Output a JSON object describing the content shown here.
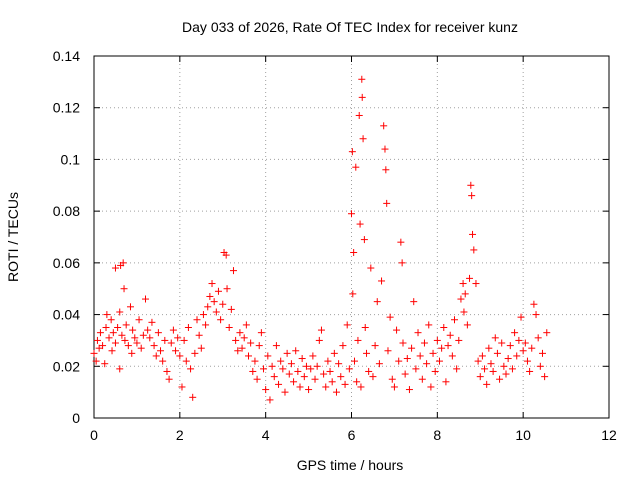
{
  "chart_data": {
    "type": "scatter",
    "title": "Day 033 of 2026, Rate Of TEC Index for receiver kunz",
    "xlabel": "GPS time / hours",
    "ylabel": "ROTI / TECUs",
    "xlim": [
      0,
      12
    ],
    "ylim": [
      0,
      0.14
    ],
    "x_ticks": [
      "0",
      "2",
      "4",
      "6",
      "8",
      "10",
      "12"
    ],
    "y_ticks": [
      "0",
      "0.02",
      "0.04",
      "0.06",
      "0.08",
      "0.1",
      "0.12",
      "0.14"
    ],
    "grid": true,
    "marker": "plus",
    "color": "#ff0000",
    "series": [
      {
        "points": [
          [
            0.0,
            0.025
          ],
          [
            0.05,
            0.022
          ],
          [
            0.08,
            0.03
          ],
          [
            0.12,
            0.027
          ],
          [
            0.15,
            0.033
          ],
          [
            0.2,
            0.028
          ],
          [
            0.25,
            0.021
          ],
          [
            0.28,
            0.035
          ],
          [
            0.3,
            0.04
          ],
          [
            0.35,
            0.031
          ],
          [
            0.4,
            0.038
          ],
          [
            0.42,
            0.026
          ],
          [
            0.45,
            0.033
          ],
          [
            0.5,
            0.029
          ],
          [
            0.5,
            0.058
          ],
          [
            0.55,
            0.035
          ],
          [
            0.6,
            0.041
          ],
          [
            0.6,
            0.019
          ],
          [
            0.62,
            0.059
          ],
          [
            0.65,
            0.032
          ],
          [
            0.68,
            0.06
          ],
          [
            0.7,
            0.05
          ],
          [
            0.72,
            0.03
          ],
          [
            0.75,
            0.036
          ],
          [
            0.8,
            0.028
          ],
          [
            0.85,
            0.043
          ],
          [
            0.88,
            0.025
          ],
          [
            0.9,
            0.034
          ],
          [
            0.95,
            0.031
          ],
          [
            1.0,
            0.029
          ],
          [
            1.05,
            0.038
          ],
          [
            1.1,
            0.027
          ],
          [
            1.15,
            0.032
          ],
          [
            1.2,
            0.046
          ],
          [
            1.25,
            0.034
          ],
          [
            1.3,
            0.031
          ],
          [
            1.35,
            0.037
          ],
          [
            1.4,
            0.028
          ],
          [
            1.45,
            0.024
          ],
          [
            1.5,
            0.033
          ],
          [
            1.55,
            0.026
          ],
          [
            1.6,
            0.022
          ],
          [
            1.65,
            0.03
          ],
          [
            1.7,
            0.018
          ],
          [
            1.75,
            0.015
          ],
          [
            1.8,
            0.029
          ],
          [
            1.85,
            0.034
          ],
          [
            1.9,
            0.026
          ],
          [
            1.95,
            0.031
          ],
          [
            2.0,
            0.024
          ],
          [
            2.05,
            0.012
          ],
          [
            2.1,
            0.03
          ],
          [
            2.15,
            0.022
          ],
          [
            2.2,
            0.035
          ],
          [
            2.25,
            0.019
          ],
          [
            2.3,
            0.008
          ],
          [
            2.35,
            0.025
          ],
          [
            2.4,
            0.038
          ],
          [
            2.45,
            0.032
          ],
          [
            2.5,
            0.027
          ],
          [
            2.55,
            0.04
          ],
          [
            2.6,
            0.036
          ],
          [
            2.65,
            0.043
          ],
          [
            2.7,
            0.047
          ],
          [
            2.75,
            0.052
          ],
          [
            2.8,
            0.045
          ],
          [
            2.85,
            0.041
          ],
          [
            2.9,
            0.049
          ],
          [
            2.95,
            0.038
          ],
          [
            3.0,
            0.044
          ],
          [
            3.03,
            0.064
          ],
          [
            3.08,
            0.063
          ],
          [
            3.1,
            0.05
          ],
          [
            3.15,
            0.035
          ],
          [
            3.2,
            0.042
          ],
          [
            3.25,
            0.057
          ],
          [
            3.3,
            0.03
          ],
          [
            3.35,
            0.026
          ],
          [
            3.4,
            0.033
          ],
          [
            3.45,
            0.027
          ],
          [
            3.5,
            0.031
          ],
          [
            3.55,
            0.036
          ],
          [
            3.6,
            0.024
          ],
          [
            3.65,
            0.029
          ],
          [
            3.7,
            0.018
          ],
          [
            3.75,
            0.022
          ],
          [
            3.8,
            0.015
          ],
          [
            3.85,
            0.028
          ],
          [
            3.9,
            0.033
          ],
          [
            3.95,
            0.019
          ],
          [
            4.0,
            0.011
          ],
          [
            4.05,
            0.024
          ],
          [
            4.1,
            0.007
          ],
          [
            4.15,
            0.02
          ],
          [
            4.2,
            0.016
          ],
          [
            4.25,
            0.028
          ],
          [
            4.3,
            0.013
          ],
          [
            4.35,
            0.022
          ],
          [
            4.4,
            0.019
          ],
          [
            4.45,
            0.01
          ],
          [
            4.5,
            0.025
          ],
          [
            4.55,
            0.017
          ],
          [
            4.6,
            0.021
          ],
          [
            4.65,
            0.014
          ],
          [
            4.7,
            0.026
          ],
          [
            4.75,
            0.018
          ],
          [
            4.8,
            0.012
          ],
          [
            4.85,
            0.023
          ],
          [
            4.9,
            0.016
          ],
          [
            4.95,
            0.02
          ],
          [
            5.0,
            0.011
          ],
          [
            5.05,
            0.019
          ],
          [
            5.1,
            0.024
          ],
          [
            5.15,
            0.015
          ],
          [
            5.2,
            0.02
          ],
          [
            5.25,
            0.03
          ],
          [
            5.3,
            0.034
          ],
          [
            5.35,
            0.017
          ],
          [
            5.4,
            0.012
          ],
          [
            5.45,
            0.022
          ],
          [
            5.5,
            0.018
          ],
          [
            5.55,
            0.014
          ],
          [
            5.6,
            0.025
          ],
          [
            5.65,
            0.01
          ],
          [
            5.7,
            0.021
          ],
          [
            5.75,
            0.016
          ],
          [
            5.8,
            0.028
          ],
          [
            5.85,
            0.013
          ],
          [
            5.9,
            0.036
          ],
          [
            5.95,
            0.019
          ],
          [
            6.0,
            0.079
          ],
          [
            6.02,
            0.103
          ],
          [
            6.03,
            0.048
          ],
          [
            6.05,
            0.064
          ],
          [
            6.07,
            0.022
          ],
          [
            6.1,
            0.097
          ],
          [
            6.12,
            0.014
          ],
          [
            6.15,
            0.03
          ],
          [
            6.18,
            0.117
          ],
          [
            6.2,
            0.075
          ],
          [
            6.22,
            0.012
          ],
          [
            6.24,
            0.131
          ],
          [
            6.25,
            0.124
          ],
          [
            6.27,
            0.108
          ],
          [
            6.3,
            0.069
          ],
          [
            6.32,
            0.035
          ],
          [
            6.35,
            0.025
          ],
          [
            6.4,
            0.018
          ],
          [
            6.45,
            0.058
          ],
          [
            6.5,
            0.016
          ],
          [
            6.55,
            0.028
          ],
          [
            6.6,
            0.045
          ],
          [
            6.65,
            0.021
          ],
          [
            6.7,
            0.053
          ],
          [
            6.75,
            0.113
          ],
          [
            6.78,
            0.104
          ],
          [
            6.8,
            0.096
          ],
          [
            6.82,
            0.083
          ],
          [
            6.85,
            0.026
          ],
          [
            6.9,
            0.039
          ],
          [
            6.95,
            0.015
          ],
          [
            7.0,
            0.012
          ],
          [
            7.05,
            0.034
          ],
          [
            7.1,
            0.022
          ],
          [
            7.15,
            0.068
          ],
          [
            7.18,
            0.06
          ],
          [
            7.2,
            0.029
          ],
          [
            7.25,
            0.017
          ],
          [
            7.3,
            0.023
          ],
          [
            7.35,
            0.011
          ],
          [
            7.4,
            0.027
          ],
          [
            7.45,
            0.045
          ],
          [
            7.5,
            0.019
          ],
          [
            7.55,
            0.033
          ],
          [
            7.6,
            0.024
          ],
          [
            7.65,
            0.015
          ],
          [
            7.7,
            0.029
          ],
          [
            7.75,
            0.021
          ],
          [
            7.8,
            0.036
          ],
          [
            7.85,
            0.012
          ],
          [
            7.9,
            0.025
          ],
          [
            7.95,
            0.018
          ],
          [
            8.0,
            0.03
          ],
          [
            8.05,
            0.022
          ],
          [
            8.1,
            0.027
          ],
          [
            8.15,
            0.035
          ],
          [
            8.2,
            0.014
          ],
          [
            8.25,
            0.028
          ],
          [
            8.3,
            0.032
          ],
          [
            8.35,
            0.024
          ],
          [
            8.4,
            0.038
          ],
          [
            8.45,
            0.019
          ],
          [
            8.5,
            0.03
          ],
          [
            8.55,
            0.046
          ],
          [
            8.6,
            0.052
          ],
          [
            8.62,
            0.041
          ],
          [
            8.65,
            0.048
          ],
          [
            8.7,
            0.036
          ],
          [
            8.75,
            0.054
          ],
          [
            8.78,
            0.09
          ],
          [
            8.8,
            0.086
          ],
          [
            8.82,
            0.071
          ],
          [
            8.85,
            0.065
          ],
          [
            8.9,
            0.052
          ],
          [
            8.95,
            0.022
          ],
          [
            9.0,
            0.016
          ],
          [
            9.05,
            0.024
          ],
          [
            9.1,
            0.019
          ],
          [
            9.15,
            0.013
          ],
          [
            9.2,
            0.027
          ],
          [
            9.25,
            0.021
          ],
          [
            9.3,
            0.018
          ],
          [
            9.35,
            0.031
          ],
          [
            9.4,
            0.025
          ],
          [
            9.45,
            0.015
          ],
          [
            9.5,
            0.029
          ],
          [
            9.55,
            0.02
          ],
          [
            9.6,
            0.017
          ],
          [
            9.65,
            0.023
          ],
          [
            9.7,
            0.028
          ],
          [
            9.75,
            0.019
          ],
          [
            9.8,
            0.033
          ],
          [
            9.85,
            0.024
          ],
          [
            9.9,
            0.03
          ],
          [
            9.95,
            0.039
          ],
          [
            10.0,
            0.026
          ],
          [
            10.05,
            0.029
          ],
          [
            10.1,
            0.022
          ],
          [
            10.15,
            0.018
          ],
          [
            10.2,
            0.027
          ],
          [
            10.25,
            0.044
          ],
          [
            10.3,
            0.04
          ],
          [
            10.35,
            0.031
          ],
          [
            10.4,
            0.02
          ],
          [
            10.45,
            0.025
          ],
          [
            10.5,
            0.016
          ],
          [
            10.55,
            0.033
          ]
        ]
      }
    ]
  }
}
